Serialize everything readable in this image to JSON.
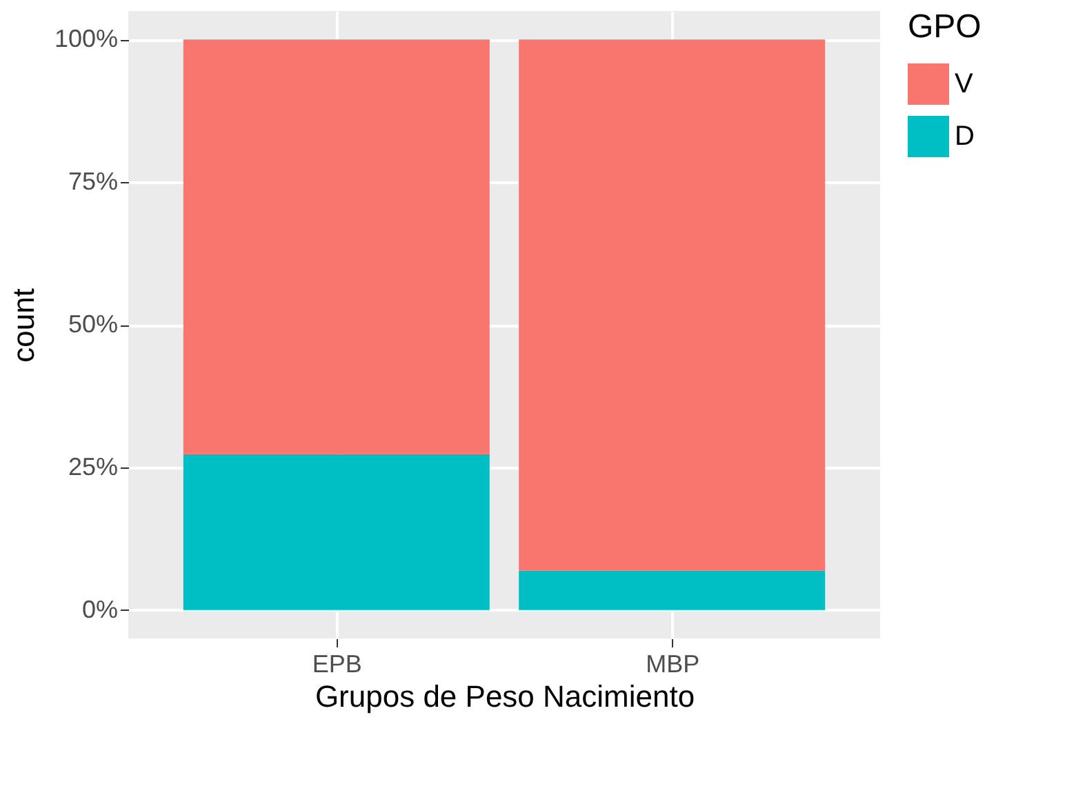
{
  "chart_data": {
    "type": "bar",
    "stacked": true,
    "xlabel": "Grupos de Peso Nacimiento",
    "ylabel": "count",
    "legend_title": "GPO",
    "categories": [
      "EPB",
      "MBP"
    ],
    "series": [
      {
        "name": "D",
        "color": "#00bfc4",
        "values": [
          27.3,
          6.9
        ]
      },
      {
        "name": "V",
        "color": "#f8766d",
        "values": [
          72.7,
          93.1
        ]
      }
    ],
    "ylim": [
      -5,
      105
    ],
    "yticks": [
      {
        "value": 0,
        "label": "0%"
      },
      {
        "value": 25,
        "label": "25%"
      },
      {
        "value": 50,
        "label": "50%"
      },
      {
        "value": 75,
        "label": "75%"
      },
      {
        "value": 100,
        "label": "100%"
      }
    ],
    "grid": true,
    "legend": "right"
  }
}
